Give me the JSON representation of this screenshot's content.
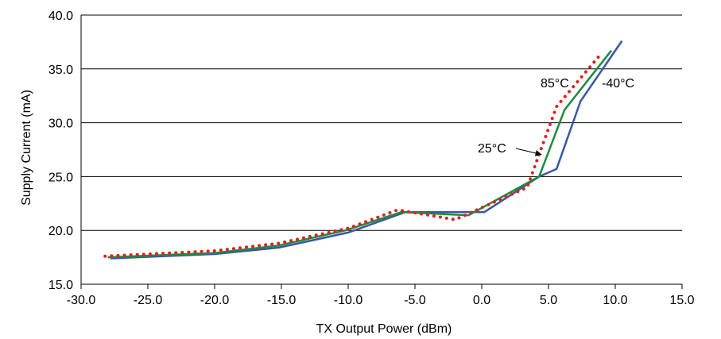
{
  "chart_data": {
    "type": "line",
    "title": "",
    "xlabel": "TX Output Power (dBm)",
    "ylabel": "Supply Current (mA)",
    "xlim": [
      -30,
      15
    ],
    "ylim": [
      15,
      40
    ],
    "xticks": [
      -30,
      -25,
      -20,
      -15,
      -10,
      -5,
      0,
      5,
      10,
      15
    ],
    "yticks": [
      15,
      20,
      25,
      30,
      35,
      40
    ],
    "xtick_labels": [
      "-30.0",
      "-25.0",
      "-20.0",
      "-15.0",
      "-10.0",
      "-5.0",
      "0.0",
      "5.0",
      "10.0",
      "15.0"
    ],
    "ytick_labels": [
      "15.0",
      "20.0",
      "25.0",
      "30.0",
      "35.0",
      "40.0"
    ],
    "grid": "horizontal",
    "series": [
      {
        "name": "-40°C",
        "color": "#3a55a4",
        "style": "solid",
        "x": [
          -27.8,
          -20,
          -15.2,
          -10,
          -5.7,
          0.2,
          4.3,
          5.6,
          7.4,
          10.5
        ],
        "y": [
          17.4,
          17.8,
          18.4,
          19.8,
          21.7,
          21.7,
          25.0,
          25.7,
          32.0,
          37.6
        ]
      },
      {
        "name": "25°C",
        "color": "#1f8a3c",
        "style": "solid",
        "x": [
          -28,
          -20,
          -15.2,
          -10.2,
          -6,
          -1,
          4.3,
          6.2,
          9.7
        ],
        "y": [
          17.5,
          17.9,
          18.6,
          20.0,
          21.7,
          21.4,
          25.0,
          31.2,
          36.7
        ]
      },
      {
        "name": "85°C",
        "color": "#e02020",
        "style": "dotted",
        "x": [
          -28.2,
          -20,
          -15.2,
          -10,
          -6.3,
          -2,
          3.4,
          5.6,
          7.3,
          9.0
        ],
        "y": [
          17.6,
          18.1,
          18.8,
          20.2,
          21.9,
          21.0,
          24.0,
          31.5,
          34.0,
          36.5
        ]
      }
    ],
    "annotations": [
      {
        "text": "85°C",
        "series": "85°C"
      },
      {
        "text": "-40°C",
        "series": "-40°C"
      },
      {
        "text": "25°C",
        "series": "25°C",
        "arrow_to": [
          4.8,
          27.5
        ]
      }
    ]
  }
}
